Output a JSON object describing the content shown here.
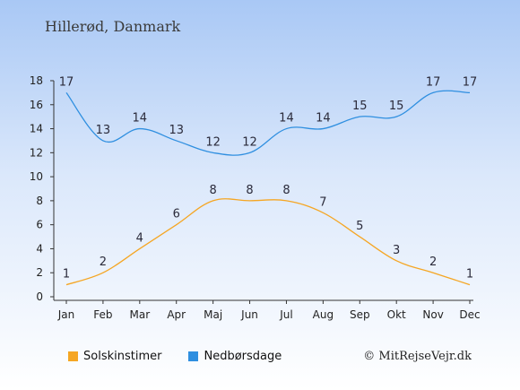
{
  "page": {
    "title": "Hillerød, Danmark",
    "credit": "© MitRejseVejr.dk"
  },
  "chart_data": {
    "type": "line",
    "categories": [
      "Jan",
      "Feb",
      "Mar",
      "Apr",
      "Maj",
      "Jun",
      "Jul",
      "Aug",
      "Sep",
      "Okt",
      "Nov",
      "Dec"
    ],
    "ylim": [
      0,
      18
    ],
    "yticks": [
      0,
      2,
      4,
      6,
      8,
      10,
      12,
      14,
      16,
      18
    ],
    "grid": false,
    "legend_position": "bottom-left",
    "series": [
      {
        "name": "Solskinstimer",
        "color": "#f5a623",
        "values": [
          1,
          2,
          4,
          6,
          8,
          8,
          8,
          7,
          5,
          3,
          2,
          1
        ]
      },
      {
        "name": "Nedbørsdage",
        "color": "#2f8fe0",
        "values": [
          17,
          13,
          14,
          13,
          12,
          12,
          14,
          14,
          15,
          15,
          17,
          17
        ]
      }
    ]
  }
}
